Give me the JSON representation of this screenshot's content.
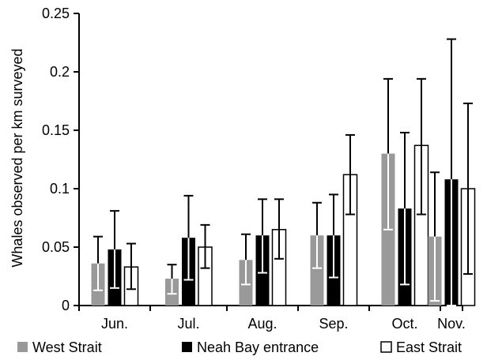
{
  "chart_data": {
    "type": "bar",
    "ylabel": "Whales observed per km surveyed",
    "xlabel": "",
    "ylim": [
      0,
      0.25
    ],
    "yticks": [
      "0",
      "0.05",
      "0.1",
      "0.15",
      "0.2",
      "0.25"
    ],
    "categories": [
      "Jun.",
      "Jul.",
      "Aug.",
      "Sep.",
      "Oct.",
      "Nov."
    ],
    "legend_position": "bottom",
    "grid": false,
    "series": [
      {
        "name": "West Strait",
        "color": "#999999",
        "values": [
          0.036,
          0.023,
          0.039,
          0.06,
          0.13,
          0.059
        ],
        "error_upper": [
          0.059,
          0.035,
          0.061,
          0.088,
          0.194,
          0.114
        ],
        "error_lower": [
          0.013,
          0.01,
          0.018,
          0.032,
          0.065,
          0.004
        ]
      },
      {
        "name": "Neah Bay entrance",
        "color": "#000000",
        "values": [
          0.048,
          0.058,
          0.06,
          0.06,
          0.083,
          0.108
        ],
        "error_upper": [
          0.081,
          0.094,
          0.091,
          0.095,
          0.148,
          0.228
        ],
        "error_lower": [
          0.015,
          0.022,
          0.028,
          0.024,
          0.018,
          0.0
        ]
      },
      {
        "name": "East Strait",
        "color": "#ffffff",
        "values": [
          0.033,
          0.05,
          0.065,
          0.112,
          0.137,
          0.1
        ],
        "error_upper": [
          0.053,
          0.069,
          0.091,
          0.146,
          0.194,
          0.173
        ],
        "error_lower": [
          0.014,
          0.032,
          0.04,
          0.078,
          0.078,
          0.027
        ]
      }
    ]
  }
}
